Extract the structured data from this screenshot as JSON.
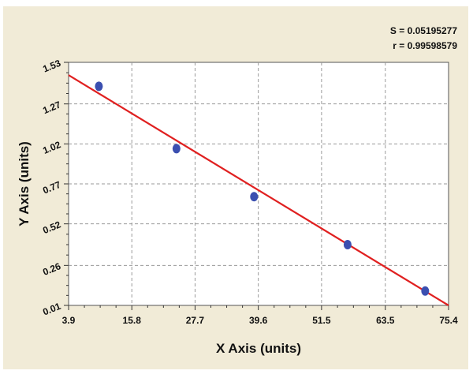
{
  "stats": {
    "s_label": "S = 0.05195277",
    "r_label": "r = 0.99598579"
  },
  "chart_data": {
    "type": "scatter",
    "title": "",
    "xlabel": "X Axis (units)",
    "ylabel": "Y Axis (units)",
    "xlim": [
      3.9,
      75.4
    ],
    "ylim": [
      0.01,
      1.53
    ],
    "xticks": [
      3.9,
      15.8,
      27.7,
      39.6,
      51.5,
      63.5,
      75.4
    ],
    "xtick_labels": [
      "3.9",
      "15.8",
      "27.7",
      "39.6",
      "51.5",
      "63.5",
      "75.4"
    ],
    "yticks": [
      0.01,
      0.26,
      0.52,
      0.77,
      1.02,
      1.27,
      1.53
    ],
    "ytick_labels": [
      "0.01",
      "0.26",
      "0.52",
      "0.77",
      "1.02",
      "1.27",
      "1.53"
    ],
    "grid": true,
    "series": [
      {
        "points": [
          {
            "x": 9.6,
            "y": 1.38
          },
          {
            "x": 24.2,
            "y": 0.99
          },
          {
            "x": 38.8,
            "y": 0.69
          },
          {
            "x": 56.4,
            "y": 0.39
          },
          {
            "x": 71.0,
            "y": 0.1
          }
        ],
        "color": "#3b4fb0"
      }
    ],
    "fit_line": {
      "points": [
        {
          "x": 3.9,
          "y": 1.45
        },
        {
          "x": 75.4,
          "y": 0.01
        }
      ],
      "color": "#e02020"
    }
  }
}
